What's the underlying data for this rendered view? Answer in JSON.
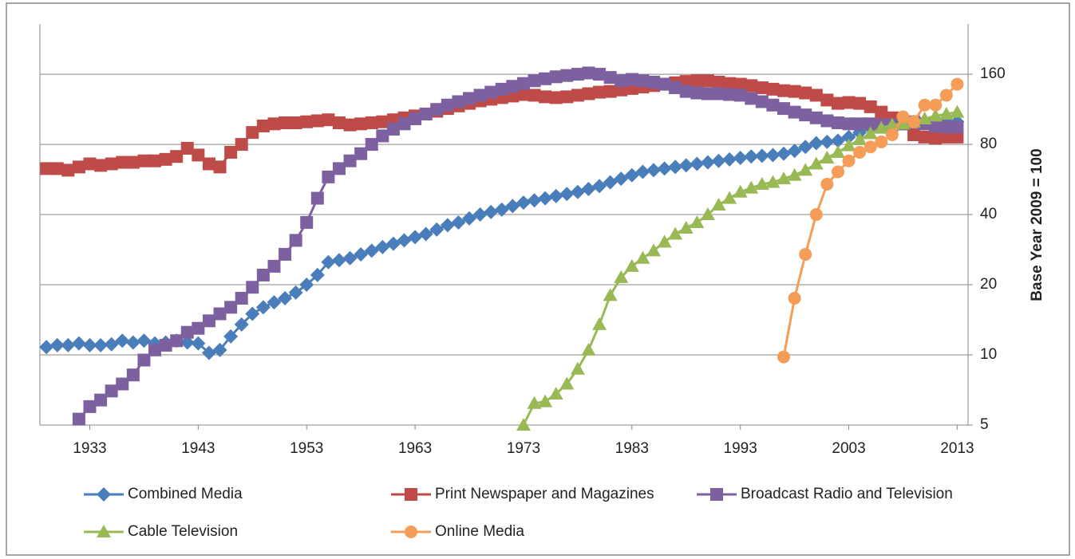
{
  "chart_data": {
    "type": "line",
    "y_axis_label": "Base Year 2009 = 100",
    "log_scale": true,
    "grid": true,
    "legend": "bottom",
    "x": [
      1929,
      1930,
      1931,
      1932,
      1933,
      1934,
      1935,
      1936,
      1937,
      1938,
      1939,
      1940,
      1941,
      1942,
      1943,
      1944,
      1945,
      1946,
      1947,
      1948,
      1949,
      1950,
      1951,
      1952,
      1953,
      1954,
      1955,
      1956,
      1957,
      1958,
      1959,
      1960,
      1961,
      1962,
      1963,
      1964,
      1965,
      1966,
      1967,
      1968,
      1969,
      1970,
      1971,
      1972,
      1973,
      1974,
      1975,
      1976,
      1977,
      1978,
      1979,
      1980,
      1981,
      1982,
      1983,
      1984,
      1985,
      1986,
      1987,
      1988,
      1989,
      1990,
      1991,
      1992,
      1993,
      1994,
      1995,
      1996,
      1997,
      1998,
      1999,
      2000,
      2001,
      2002,
      2003,
      2004,
      2005,
      2006,
      2007,
      2008,
      2009,
      2010,
      2011,
      2012,
      2013
    ],
    "xlim": [
      1928.4,
      2014
    ],
    "xticks": [
      1933,
      1943,
      1953,
      1963,
      1973,
      1983,
      1993,
      2003,
      2013
    ],
    "ylim": [
      5,
      263
    ],
    "yticks": [
      5,
      10,
      20,
      40,
      80,
      160
    ],
    "series": [
      {
        "name": "Combined Media",
        "color": "#4a7ebb",
        "marker": "diamond",
        "values": [
          10.8,
          11,
          11,
          11.2,
          11,
          11,
          11.1,
          11.5,
          11.3,
          11.5,
          11.2,
          11.3,
          11.5,
          11.3,
          11.2,
          10.2,
          10.5,
          12,
          13.5,
          15,
          16,
          16.8,
          17.5,
          18.5,
          20,
          22,
          25,
          25.5,
          26,
          27,
          28,
          29,
          30,
          31,
          32,
          33,
          34.5,
          36,
          37,
          38.5,
          40,
          41,
          42,
          43.5,
          45,
          46,
          47,
          48,
          49,
          50,
          51.5,
          53,
          55,
          57,
          59,
          61,
          62,
          63,
          64,
          65,
          66,
          67,
          68,
          69,
          70,
          71,
          71.5,
          72,
          73,
          75,
          78,
          81,
          82,
          83,
          86,
          90,
          94,
          98,
          102,
          102,
          100,
          100,
          100,
          100,
          100
        ]
      },
      {
        "name": "Print Newspaper and Magazines",
        "color": "#be4b48",
        "marker": "square",
        "values": [
          63,
          63,
          62,
          64,
          66,
          65,
          66,
          67,
          67,
          68,
          68,
          69,
          71,
          77,
          72,
          66,
          64,
          74,
          80,
          90,
          96,
          98,
          99,
          99,
          100,
          101,
          102,
          99,
          97,
          98,
          99,
          100,
          102,
          104,
          106,
          108,
          111,
          114,
          117,
          120,
          123,
          125,
          127,
          129,
          131,
          130,
          128,
          127,
          128,
          130,
          132,
          134,
          135,
          137,
          139,
          141,
          143,
          145,
          147,
          149,
          150,
          150,
          148,
          146,
          145,
          143,
          140,
          138,
          136,
          135,
          133,
          130,
          124,
          120,
          121,
          120,
          116,
          110,
          104,
          98,
          88,
          86,
          85,
          86,
          86
        ]
      },
      {
        "name": "Broadcast Radio and Television",
        "color": "#7d60a0",
        "marker": "square",
        "values": [
          null,
          null,
          null,
          5.3,
          6,
          6.4,
          7,
          7.5,
          8.2,
          9.5,
          10.5,
          11,
          11.5,
          12.5,
          13,
          14,
          15,
          16,
          17.5,
          19.5,
          22,
          24,
          27,
          31,
          37,
          47,
          58,
          63,
          68,
          73,
          80,
          87,
          93,
          98,
          103,
          108,
          113,
          118,
          122,
          126,
          130,
          134,
          138,
          142,
          146,
          150,
          153,
          156,
          158,
          160,
          162,
          160,
          155,
          150,
          152,
          150,
          148,
          145,
          140,
          135,
          133,
          132,
          132,
          131,
          130,
          126,
          122,
          118,
          114,
          110,
          107,
          104,
          101,
          99,
          98,
          98,
          98,
          97,
          97,
          98,
          100,
          98,
          96,
          95,
          95
        ]
      },
      {
        "name": "Cable Television",
        "color": "#98b954",
        "marker": "triangle",
        "values": [
          null,
          null,
          null,
          null,
          null,
          null,
          null,
          null,
          null,
          null,
          null,
          null,
          null,
          null,
          null,
          null,
          null,
          null,
          null,
          null,
          null,
          null,
          null,
          null,
          null,
          null,
          null,
          null,
          null,
          null,
          null,
          null,
          null,
          null,
          null,
          null,
          null,
          null,
          null,
          null,
          null,
          null,
          null,
          null,
          5,
          6.2,
          6.3,
          6.8,
          7.5,
          8.7,
          10.5,
          13.5,
          18,
          21.5,
          24,
          26,
          28,
          30.5,
          33,
          35,
          37,
          40,
          44,
          47,
          50,
          52,
          54,
          55,
          57,
          59,
          62,
          66,
          70,
          74,
          79,
          84,
          89,
          94,
          97,
          98,
          100,
          103,
          106,
          108,
          110
        ]
      },
      {
        "name": "Online Media",
        "color": "#f59d56",
        "marker": "circle",
        "values": [
          null,
          null,
          null,
          null,
          null,
          null,
          null,
          null,
          null,
          null,
          null,
          null,
          null,
          null,
          null,
          null,
          null,
          null,
          null,
          null,
          null,
          null,
          null,
          null,
          null,
          null,
          null,
          null,
          null,
          null,
          null,
          null,
          null,
          null,
          null,
          null,
          null,
          null,
          null,
          null,
          null,
          null,
          null,
          null,
          null,
          null,
          null,
          null,
          null,
          null,
          null,
          null,
          null,
          null,
          null,
          null,
          null,
          null,
          null,
          null,
          null,
          null,
          null,
          null,
          null,
          null,
          null,
          null,
          9.8,
          17.5,
          27,
          40,
          54,
          61,
          68,
          74,
          78,
          82,
          88,
          105,
          100,
          118,
          118,
          130,
          145
        ]
      }
    ]
  }
}
